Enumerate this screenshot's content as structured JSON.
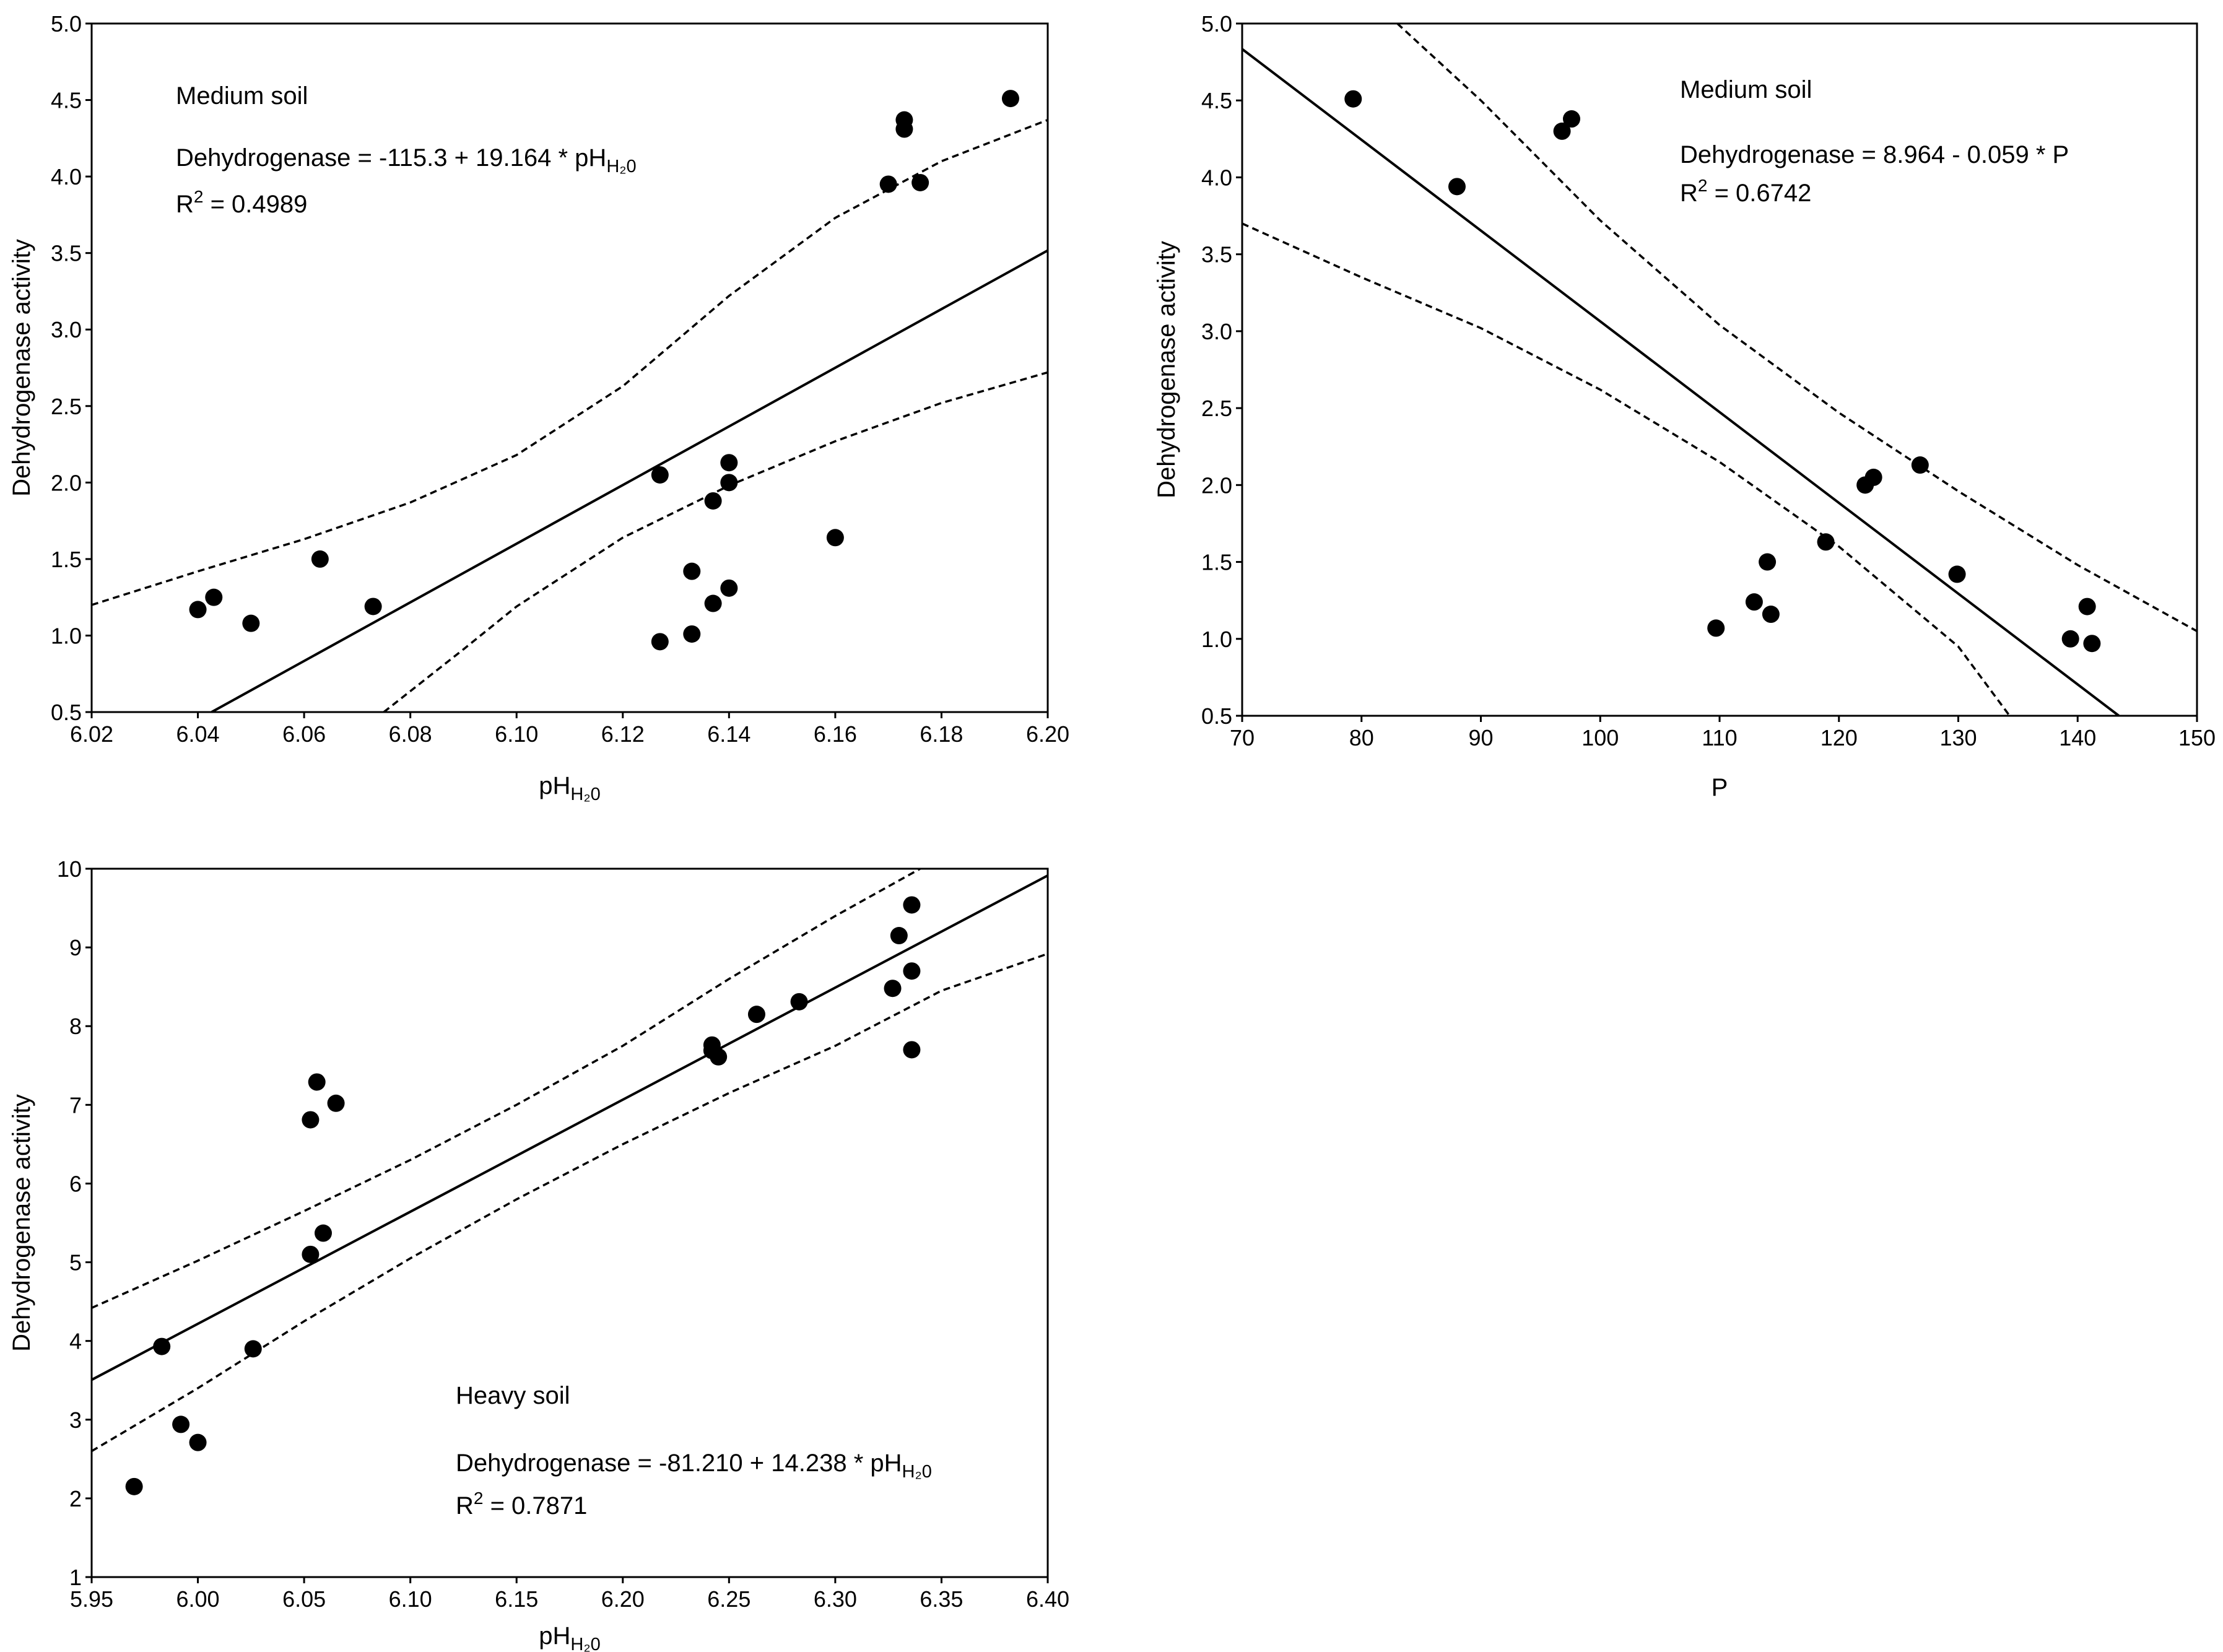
{
  "chart_data": [
    {
      "type": "scatter",
      "panel": "top-left",
      "title": "",
      "annotation_title": "Medium soil",
      "equation_text": "Dehydrogenase = -115.3 + 19.164 * pH",
      "r2_label": "R",
      "r2_value": " = 0.4989",
      "xlabel": "pH",
      "xlabel_sub": "H₂0",
      "ylabel": "Dehydrogenase activity",
      "xlim": [
        6.02,
        6.2
      ],
      "ylim": [
        0.5,
        5.0
      ],
      "xticks": [
        "6.02",
        "6.04",
        "6.06",
        "6.08",
        "6.10",
        "6.12",
        "6.14",
        "6.16",
        "6.18",
        "6.20"
      ],
      "yticks": [
        "0.5",
        "1.0",
        "1.5",
        "2.0",
        "2.5",
        "3.0",
        "3.5",
        "4.0",
        "4.5",
        "5.0"
      ],
      "fit": {
        "intercept": -115.3,
        "slope": 19.164
      },
      "ci_upper": [
        [
          6.02,
          1.2
        ],
        [
          6.04,
          1.42
        ],
        [
          6.06,
          1.63
        ],
        [
          6.08,
          1.87
        ],
        [
          6.1,
          2.18
        ],
        [
          6.12,
          2.63
        ],
        [
          6.14,
          3.22
        ],
        [
          6.16,
          3.73
        ],
        [
          6.18,
          4.1
        ],
        [
          6.2,
          4.37
        ]
      ],
      "ci_lower": [
        [
          6.075,
          0.5
        ],
        [
          6.09,
          0.91
        ],
        [
          6.1,
          1.19
        ],
        [
          6.12,
          1.64
        ],
        [
          6.14,
          1.98
        ],
        [
          6.16,
          2.27
        ],
        [
          6.18,
          2.52
        ],
        [
          6.2,
          2.72
        ]
      ],
      "x": [
        6.04,
        6.043,
        6.05,
        6.063,
        6.073,
        6.127,
        6.127,
        6.133,
        6.133,
        6.137,
        6.137,
        6.14,
        6.14,
        6.14,
        6.16,
        6.17,
        6.173,
        6.173,
        6.176,
        6.193
      ],
      "y": [
        1.17,
        1.25,
        1.08,
        1.5,
        1.19,
        2.05,
        0.96,
        1.42,
        1.01,
        1.88,
        1.21,
        2.13,
        2.0,
        1.31,
        1.64,
        3.95,
        4.31,
        4.37,
        3.96,
        4.51
      ]
    },
    {
      "type": "scatter",
      "panel": "top-right",
      "title": "",
      "annotation_title": "Medium soil",
      "equation_text": "Dehydrogenase = 8.964 - 0.059 * P",
      "r2_label": "R",
      "r2_value": " = 0.6742",
      "xlabel": "P",
      "xlabel_sub": "",
      "ylabel": "Dehydrogenase activity",
      "xlim": [
        70,
        150
      ],
      "ylim": [
        0.5,
        5.0
      ],
      "xticks": [
        "70",
        "80",
        "90",
        "100",
        "110",
        "120",
        "130",
        "140",
        "150"
      ],
      "yticks": [
        "0.5",
        "1.0",
        "1.5",
        "2.0",
        "2.5",
        "3.0",
        "3.5",
        "4.0",
        "4.5",
        "5.0"
      ],
      "fit": {
        "intercept": 8.964,
        "slope": -0.059
      },
      "ci_upper": [
        [
          83,
          5.0
        ],
        [
          90,
          4.5
        ],
        [
          100,
          3.72
        ],
        [
          110,
          3.04
        ],
        [
          120,
          2.47
        ],
        [
          130,
          1.96
        ],
        [
          140,
          1.48
        ],
        [
          150,
          1.05
        ]
      ],
      "ci_lower": [
        [
          70,
          3.7
        ],
        [
          80,
          3.35
        ],
        [
          90,
          3.02
        ],
        [
          100,
          2.62
        ],
        [
          110,
          2.15
        ],
        [
          120,
          1.6
        ],
        [
          130,
          0.95
        ],
        [
          134.3,
          0.5
        ]
      ],
      "x": [
        79.3,
        88.0,
        96.8,
        97.6,
        109.7,
        112.9,
        114.0,
        114.3,
        118.9,
        122.2,
        122.9,
        126.8,
        129.9,
        139.4,
        140.8,
        141.2
      ],
      "y": [
        4.51,
        3.94,
        4.3,
        4.38,
        1.07,
        1.24,
        1.5,
        1.16,
        1.63,
        2.0,
        2.05,
        2.13,
        1.42,
        1.0,
        1.21,
        0.97
      ]
    },
    {
      "type": "scatter",
      "panel": "bottom-left",
      "title": "",
      "annotation_title": "Heavy soil",
      "equation_text": "Dehydrogenase = -81.210 + 14.238 * pH",
      "r2_label": "R",
      "r2_value": " = 0.7871",
      "xlabel": "pH",
      "xlabel_sub": "H₂0",
      "ylabel": "Dehydrogenase activity",
      "xlim": [
        5.95,
        6.4
      ],
      "ylim": [
        1,
        10
      ],
      "xticks": [
        "5.95",
        "6.00",
        "6.05",
        "6.10",
        "6.15",
        "6.20",
        "6.25",
        "6.30",
        "6.35",
        "6.40"
      ],
      "yticks": [
        "1",
        "2",
        "3",
        "4",
        "5",
        "6",
        "7",
        "8",
        "9",
        "10"
      ],
      "fit": {
        "intercept": -81.21,
        "slope": 14.238
      },
      "ci_upper": [
        [
          5.95,
          4.42
        ],
        [
          6.0,
          5.02
        ],
        [
          6.05,
          5.65
        ],
        [
          6.1,
          6.3
        ],
        [
          6.15,
          7.0
        ],
        [
          6.2,
          7.75
        ],
        [
          6.25,
          8.6
        ],
        [
          6.3,
          9.4
        ],
        [
          6.34,
          10.0
        ]
      ],
      "ci_lower": [
        [
          5.95,
          2.6
        ],
        [
          6.0,
          3.4
        ],
        [
          6.05,
          4.25
        ],
        [
          6.1,
          5.05
        ],
        [
          6.15,
          5.8
        ],
        [
          6.2,
          6.5
        ],
        [
          6.25,
          7.15
        ],
        [
          6.3,
          7.75
        ],
        [
          6.35,
          8.45
        ],
        [
          6.4,
          8.92
        ]
      ],
      "x": [
        5.97,
        5.983,
        5.992,
        6.0,
        6.026,
        6.053,
        6.053,
        6.056,
        6.059,
        6.065,
        6.242,
        6.242,
        6.245,
        6.263,
        6.283,
        6.327,
        6.33,
        6.336,
        6.336,
        6.336
      ],
      "y": [
        2.15,
        3.93,
        2.94,
        2.71,
        3.9,
        6.81,
        5.1,
        7.29,
        5.37,
        7.02,
        7.76,
        7.69,
        7.61,
        8.15,
        8.31,
        8.48,
        9.15,
        9.54,
        8.7,
        7.7
      ]
    }
  ]
}
